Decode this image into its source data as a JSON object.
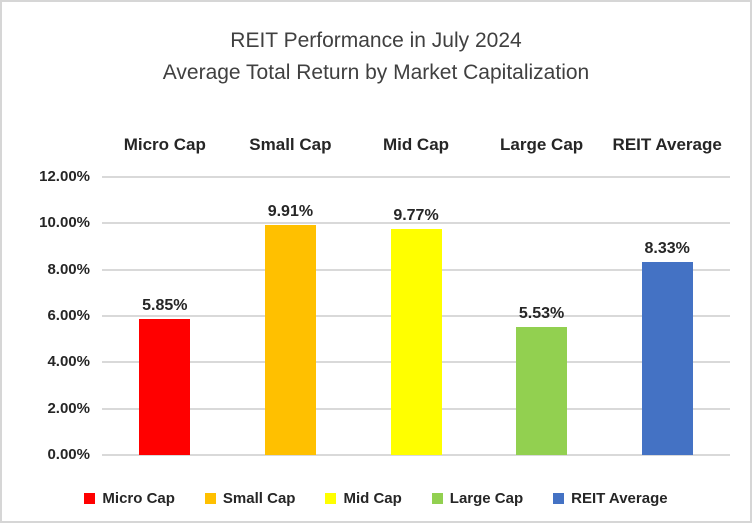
{
  "chart_data": {
    "type": "bar",
    "title": "REIT Performance in July 2024",
    "subtitle": "Average Total Return by Market Capitalization",
    "categories": [
      "Micro Cap",
      "Small Cap",
      "Mid Cap",
      "Large Cap",
      "REIT Average"
    ],
    "values": [
      5.85,
      9.91,
      9.77,
      5.53,
      8.33
    ],
    "data_labels": [
      "5.85%",
      "9.91%",
      "9.77%",
      "5.53%",
      "8.33%"
    ],
    "bar_colors": [
      "#FF0000",
      "#FFC000",
      "#FFFF00",
      "#92D050",
      "#4472C4"
    ],
    "xlabel": "",
    "ylabel": "",
    "ylim": [
      0,
      12
    ],
    "ytick_step": 2,
    "ytick_labels": [
      "0.00%",
      "2.00%",
      "4.00%",
      "6.00%",
      "8.00%",
      "10.00%",
      "12.00%"
    ],
    "grid": true,
    "legend_position": "bottom",
    "legend": [
      {
        "label": "Micro Cap",
        "color": "#FF0000"
      },
      {
        "label": "Small Cap",
        "color": "#FFC000"
      },
      {
        "label": "Mid Cap",
        "color": "#FFFF00"
      },
      {
        "label": "Large Cap",
        "color": "#92D050"
      },
      {
        "label": "REIT Average",
        "color": "#4472C4"
      }
    ]
  },
  "colors": {
    "background": "#FFFFFF",
    "frame_border": "#D6D6D6",
    "gridline": "#D9D9D9",
    "title_text": "#404040",
    "label_text": "#262626"
  }
}
